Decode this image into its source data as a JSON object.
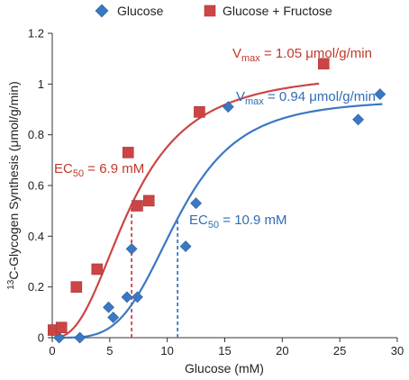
{
  "chart_data": {
    "type": "scatter",
    "xlabel": "Glucose (mM)",
    "ylabel_prefix": "13",
    "ylabel_rest": "C-Glycogen Synthesis (μmol/g/min)",
    "xlim": [
      0,
      30
    ],
    "ylim": [
      0,
      1.2
    ],
    "xticks": [
      0,
      5,
      10,
      15,
      20,
      25,
      30
    ],
    "yticks": [
      0,
      0.2,
      0.4,
      0.6,
      0.8,
      1,
      1.2
    ],
    "xtick_labels": [
      "0",
      "5",
      "10",
      "15",
      "20",
      "25",
      "30"
    ],
    "ytick_labels": [
      "0",
      "0.2",
      "0.4",
      "0.6",
      "0.8",
      "1",
      "1.2"
    ],
    "grid": false,
    "legend_position": "top",
    "series": [
      {
        "name": "Glucose",
        "marker": "diamond",
        "color": "#3a78c3",
        "points": [
          [
            0.6,
            0.0
          ],
          [
            2.4,
            0.0
          ],
          [
            4.9,
            0.12
          ],
          [
            5.3,
            0.08
          ],
          [
            6.5,
            0.16
          ],
          [
            6.9,
            0.35
          ],
          [
            7.4,
            0.16
          ],
          [
            11.6,
            0.36
          ],
          [
            12.5,
            0.53
          ],
          [
            15.3,
            0.91
          ],
          [
            26.6,
            0.86
          ],
          [
            28.5,
            0.96
          ]
        ],
        "fit": {
          "vmax": 0.94,
          "ec50": 10.9,
          "hill": 4.0,
          "x_range": [
            0.7,
            28.7
          ]
        },
        "vmax_label": {
          "main": "V",
          "sub": "max",
          "rest": " = 0.94 μmol/g/min"
        },
        "ec50_label": {
          "main": "EC",
          "sub": "50",
          "rest": " = 10.9 mM"
        }
      },
      {
        "name": "Glucose + Fructose",
        "marker": "square",
        "color": "#cc4545",
        "points": [
          [
            0.1,
            0.03
          ],
          [
            0.8,
            0.04
          ],
          [
            2.1,
            0.2
          ],
          [
            3.9,
            0.27
          ],
          [
            6.6,
            0.73
          ],
          [
            7.4,
            0.52
          ],
          [
            8.4,
            0.54
          ],
          [
            12.8,
            0.89
          ],
          [
            23.6,
            1.08
          ]
        ],
        "fit": {
          "vmax": 1.05,
          "ec50": 6.9,
          "hill": 2.5,
          "x_range": [
            0.7,
            23.2
          ]
        },
        "vmax_label": {
          "main": "V",
          "sub": "max",
          "rest": " = 1.05 μmol/g/min"
        },
        "ec50_label": {
          "main": "EC",
          "sub": "50",
          "rest": " = 6.9 mM"
        }
      }
    ]
  }
}
